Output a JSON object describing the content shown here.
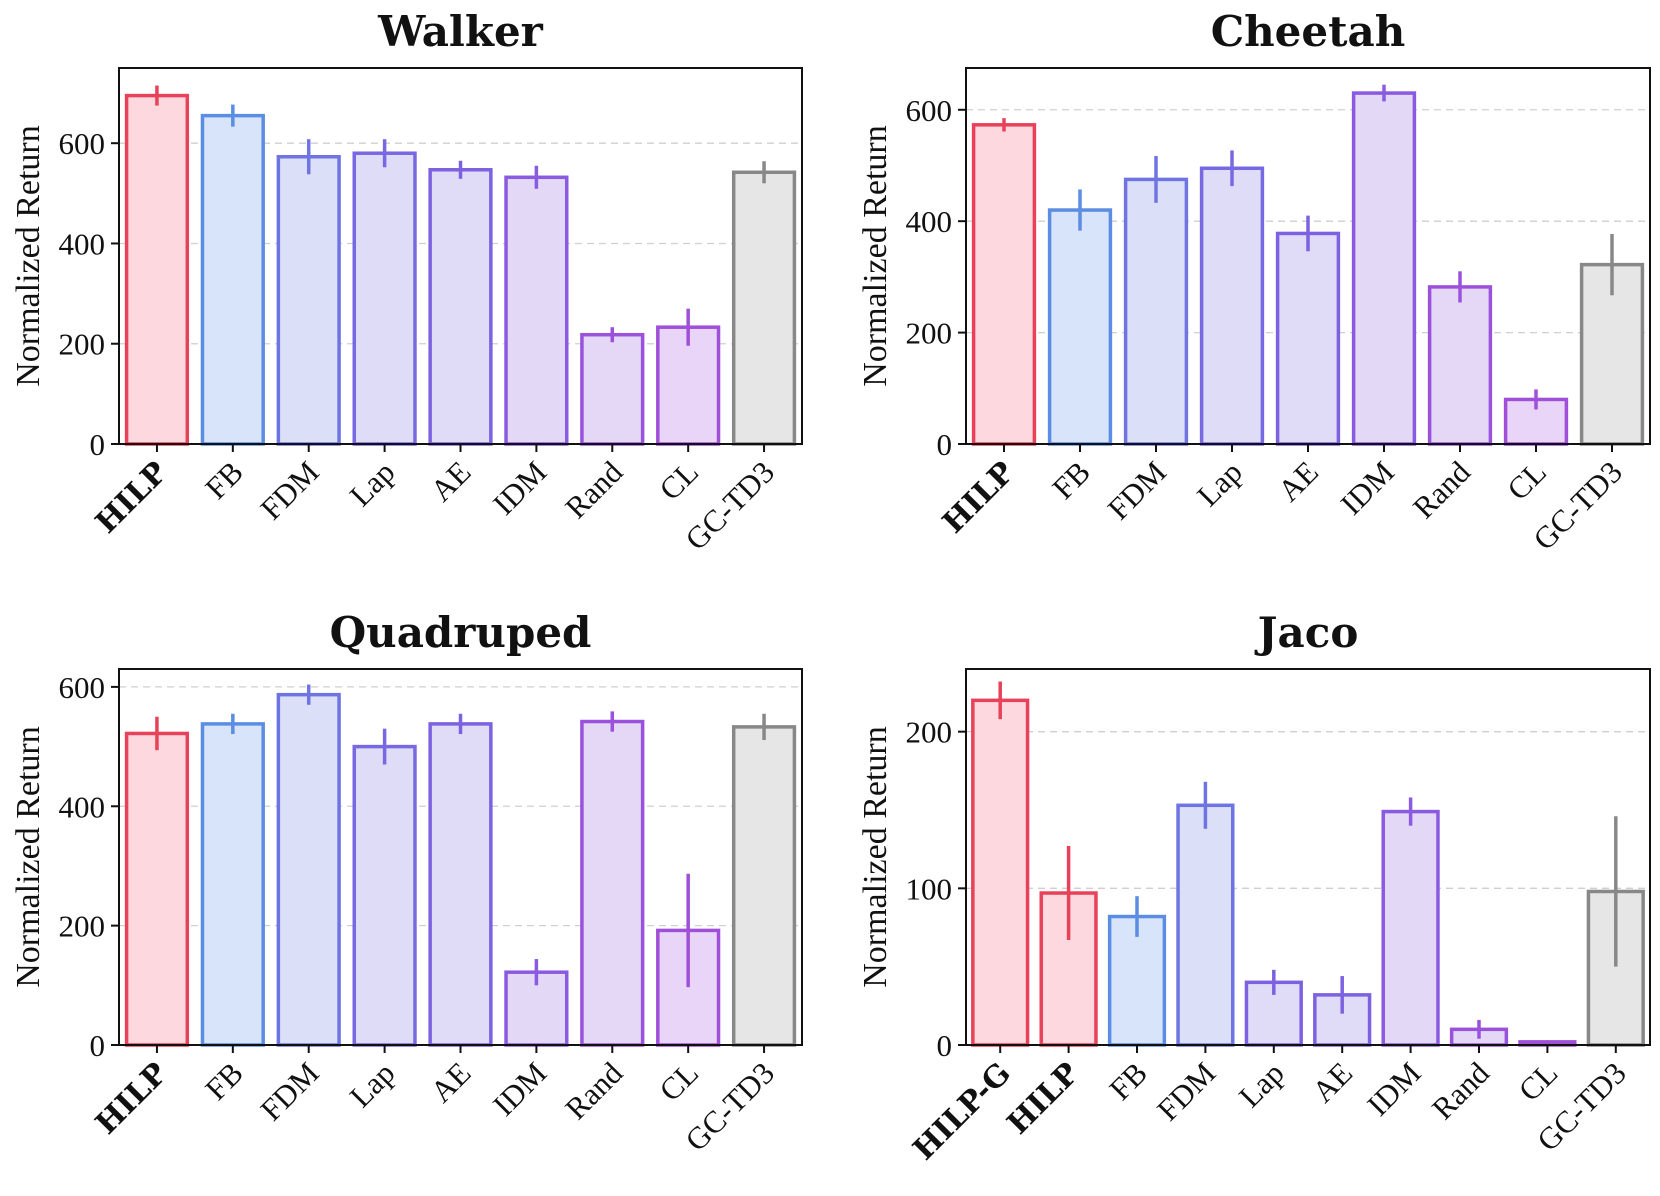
{
  "chart_data": [
    {
      "type": "bar",
      "title": "Walker",
      "ylabel": "Normalized Return",
      "ylim": [
        0,
        750
      ],
      "yticks": [
        0,
        200,
        400,
        600
      ],
      "grid": true,
      "categories": [
        "HILP",
        "FB",
        "FDM",
        "Lap",
        "AE",
        "IDM",
        "Rand",
        "CL",
        "GC-TD3"
      ],
      "bold_categories": [
        "HILP"
      ],
      "values": [
        695,
        655,
        573,
        580,
        547,
        532,
        218,
        233,
        542
      ],
      "errors": [
        20,
        22,
        35,
        28,
        18,
        23,
        15,
        37,
        22
      ],
      "colors": [
        "#e8415a",
        "#5b8de3",
        "#6e74e2",
        "#7669e2",
        "#7c62e0",
        "#8a5ae0",
        "#9a52dc",
        "#a04fd8",
        "#888888"
      ],
      "fills": [
        "#fdd8de",
        "#d8e4fa",
        "#dcdff8",
        "#dedcf7",
        "#e0dbf7",
        "#e3d9f7",
        "#e5d8f7",
        "#e8d5f7",
        "#e6e6e6"
      ]
    },
    {
      "type": "bar",
      "title": "Cheetah",
      "ylabel": "Normalized Return",
      "ylim": [
        0,
        675
      ],
      "yticks": [
        0,
        200,
        400,
        600
      ],
      "grid": true,
      "categories": [
        "HILP",
        "FB",
        "FDM",
        "Lap",
        "AE",
        "IDM",
        "Rand",
        "CL",
        "GC-TD3"
      ],
      "bold_categories": [
        "HILP"
      ],
      "values": [
        573,
        420,
        475,
        495,
        378,
        630,
        282,
        80,
        322
      ],
      "errors": [
        12,
        37,
        42,
        32,
        32,
        15,
        28,
        18,
        55
      ],
      "colors": [
        "#e8415a",
        "#5b8de3",
        "#6e74e2",
        "#7669e2",
        "#7c62e0",
        "#8a5ae0",
        "#9a52dc",
        "#a04fd8",
        "#888888"
      ],
      "fills": [
        "#fdd8de",
        "#d8e4fa",
        "#dcdff8",
        "#dedcf7",
        "#e0dbf7",
        "#e3d9f7",
        "#e5d8f7",
        "#e8d5f7",
        "#e6e6e6"
      ]
    },
    {
      "type": "bar",
      "title": "Quadruped",
      "ylabel": "Normalized Return",
      "ylim": [
        0,
        630
      ],
      "yticks": [
        0,
        200,
        400,
        600
      ],
      "grid": true,
      "categories": [
        "HILP",
        "FB",
        "FDM",
        "Lap",
        "AE",
        "IDM",
        "Rand",
        "CL",
        "GC-TD3"
      ],
      "bold_categories": [
        "HILP"
      ],
      "values": [
        522,
        538,
        587,
        500,
        538,
        122,
        542,
        192,
        533
      ],
      "errors": [
        28,
        17,
        17,
        30,
        17,
        22,
        17,
        95,
        22
      ],
      "colors": [
        "#e8415a",
        "#5b8de3",
        "#6e74e2",
        "#7669e2",
        "#7c62e0",
        "#8a5ae0",
        "#9a52dc",
        "#a04fd8",
        "#888888"
      ],
      "fills": [
        "#fdd8de",
        "#d8e4fa",
        "#dcdff8",
        "#dedcf7",
        "#e0dbf7",
        "#e3d9f7",
        "#e5d8f7",
        "#e8d5f7",
        "#e6e6e6"
      ]
    },
    {
      "type": "bar",
      "title": "Jaco",
      "ylabel": "Normalized Return",
      "ylim": [
        0,
        240
      ],
      "yticks": [
        0,
        100,
        200
      ],
      "grid": true,
      "categories": [
        "HILP-G",
        "HILP",
        "FB",
        "FDM",
        "Lap",
        "AE",
        "IDM",
        "Rand",
        "CL",
        "GC-TD3"
      ],
      "bold_categories": [
        "HILP-G",
        "HILP"
      ],
      "values": [
        220,
        97,
        82,
        153,
        40,
        32,
        149,
        10,
        2,
        98
      ],
      "errors": [
        12,
        30,
        13,
        15,
        8,
        12,
        9,
        6,
        1,
        48
      ],
      "colors": [
        "#e8415a",
        "#e8415a",
        "#5b8de3",
        "#6e74e2",
        "#7c62e0",
        "#7c62e0",
        "#8a5ae0",
        "#9a52dc",
        "#a04fd8",
        "#888888"
      ],
      "fills": [
        "#fdd8de",
        "#fdd8de",
        "#d8e4fa",
        "#dcdff8",
        "#e0dbf7",
        "#e0dbf7",
        "#e3d9f7",
        "#e5d8f7",
        "#e8d5f7",
        "#e6e6e6"
      ]
    }
  ]
}
